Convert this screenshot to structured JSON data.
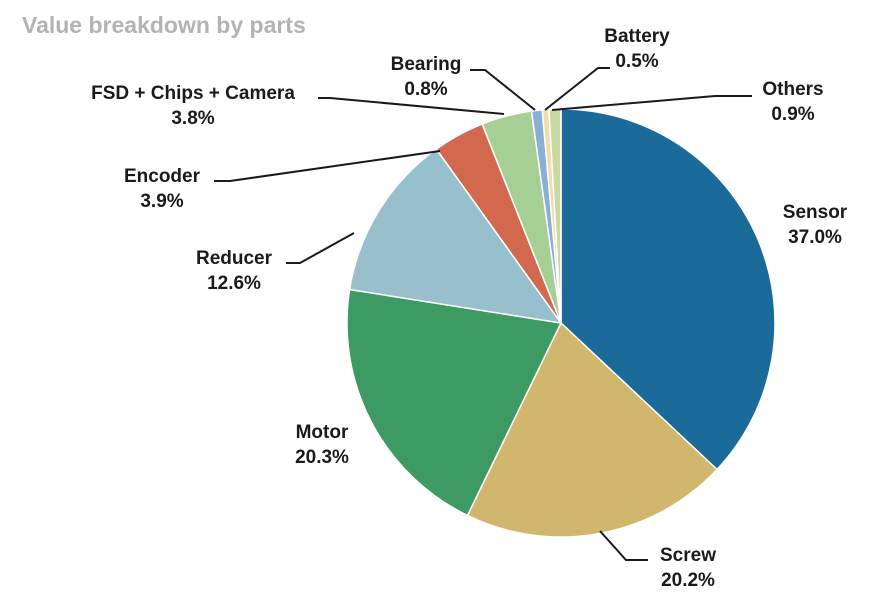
{
  "chart_data": {
    "type": "pie",
    "title": "Value breakdown by parts",
    "slices": [
      {
        "name": "Sensor",
        "value": 37.0,
        "label": "37.0%",
        "color": "#1a6b9a"
      },
      {
        "name": "Screw",
        "value": 20.2,
        "label": "20.2%",
        "color": "#d1b66e"
      },
      {
        "name": "Motor",
        "value": 20.3,
        "label": "20.3%",
        "color": "#3d9a62"
      },
      {
        "name": "Reducer",
        "value": 12.6,
        "label": "12.6%",
        "color": "#97bfcc"
      },
      {
        "name": "Encoder",
        "value": 3.9,
        "label": "3.9%",
        "color": "#d2694f"
      },
      {
        "name": "FSD + Chips + Camera",
        "value": 3.8,
        "label": "3.8%",
        "color": "#a6cf95"
      },
      {
        "name": "Bearing",
        "value": 0.8,
        "label": "0.8%",
        "color": "#8aaed4"
      },
      {
        "name": "Battery",
        "value": 0.5,
        "label": "0.5%",
        "color": "#f2dca8"
      },
      {
        "name": "Others",
        "value": 0.9,
        "label": "0.9%",
        "color": "#c8d9a3"
      }
    ]
  }
}
